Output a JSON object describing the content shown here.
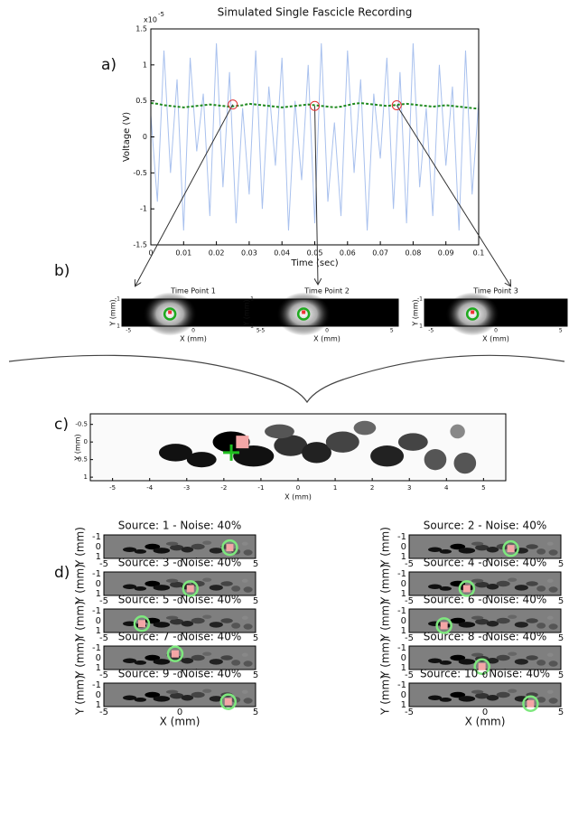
{
  "panel_labels": [
    "a)",
    "b)",
    "c)",
    "d)"
  ],
  "chart_data": [
    {
      "type": "line",
      "title": "Simulated Single Fascicle Recording",
      "xlabel": "Time (sec)",
      "ylabel": "Voltage (V)",
      "y_scale": "x10",
      "y_scale_exponent": "-5",
      "x": [
        0,
        0.002,
        0.004,
        0.006,
        0.008,
        0.01,
        0.012,
        0.014,
        0.016,
        0.018,
        0.02,
        0.022,
        0.024,
        0.026,
        0.028,
        0.03,
        0.032,
        0.034,
        0.036,
        0.038,
        0.04,
        0.042,
        0.044,
        0.046,
        0.048,
        0.05,
        0.052,
        0.054,
        0.056,
        0.058,
        0.06,
        0.062,
        0.064,
        0.066,
        0.068,
        0.07,
        0.072,
        0.074,
        0.076,
        0.078,
        0.08,
        0.082,
        0.084,
        0.086,
        0.088,
        0.09,
        0.092,
        0.094,
        0.096,
        0.098,
        0.1
      ],
      "xlim": [
        0,
        0.1
      ],
      "xticks": [
        0,
        0.01,
        0.02,
        0.03,
        0.04,
        0.05,
        0.06,
        0.07,
        0.08,
        0.09,
        0.1
      ],
      "ylim": [
        -1.5,
        1.5
      ],
      "yticks": [
        -1.5,
        -1,
        -0.5,
        0,
        0.5,
        1,
        1.5
      ],
      "series": [
        {
          "color": "#a9c1ee",
          "values": [
            0.3,
            -0.9,
            1.2,
            -0.5,
            0.8,
            -1.3,
            1.1,
            -0.2,
            0.6,
            -1.1,
            1.3,
            -0.7,
            0.9,
            -1.2,
            0.4,
            -0.8,
            1.2,
            -1.0,
            0.7,
            -0.4,
            1.1,
            -1.3,
            0.5,
            -0.6,
            1.0,
            -1.2,
            1.3,
            -0.9,
            0.2,
            -1.1,
            1.2,
            -0.5,
            0.8,
            -1.3,
            0.6,
            -0.3,
            1.1,
            -1.0,
            0.9,
            -1.2,
            1.3,
            -0.7,
            0.4,
            -1.1,
            1.0,
            -0.4,
            0.7,
            -1.3,
            1.2,
            -0.8,
            0.5
          ]
        },
        {
          "color": "#1f8a1f",
          "dashed": true,
          "values": [
            0.47,
            0.46,
            0.44,
            0.43,
            0.42,
            0.41,
            0.42,
            0.43,
            0.44,
            0.45,
            0.44,
            0.43,
            0.42,
            0.43,
            0.44,
            0.46,
            0.45,
            0.44,
            0.43,
            0.42,
            0.41,
            0.42,
            0.43,
            0.44,
            0.45,
            0.44,
            0.43,
            0.42,
            0.41,
            0.42,
            0.44,
            0.46,
            0.47,
            0.46,
            0.45,
            0.44,
            0.43,
            0.44,
            0.45,
            0.46,
            0.45,
            0.44,
            0.43,
            0.42,
            0.43,
            0.44,
            0.43,
            0.42,
            0.41,
            0.4,
            0.39
          ]
        }
      ],
      "markers": {
        "color": "#e03030",
        "x": [
          0.025,
          0.05,
          0.075
        ],
        "y": [
          0.45,
          0.43,
          0.44
        ]
      }
    },
    {
      "type": "heatmap-row",
      "xlabel": "X (mm)",
      "ylabel": "Y (mm)",
      "xlim": [
        -5.5,
        5.5
      ],
      "xticks": [
        -5,
        0,
        5
      ],
      "ylim": [
        -1,
        1
      ],
      "yticks": [
        -1,
        1
      ],
      "panels": [
        {
          "title": "Time Point 1",
          "source": {
            "x": -1.8,
            "y": 0.1
          }
        },
        {
          "title": "Time Point 2",
          "source": {
            "x": -1.8,
            "y": 0.1
          }
        },
        {
          "title": "Time Point 3",
          "source": {
            "x": -1.8,
            "y": 0.1
          }
        }
      ]
    },
    {
      "type": "fascicle-map",
      "xlabel": "X (mm)",
      "ylabel": "Y (mm)",
      "xlim": [
        -5.6,
        5.6
      ],
      "xticks": [
        -5,
        -4,
        -3,
        -2,
        -1,
        0,
        1,
        2,
        3,
        4,
        5
      ],
      "ylim": [
        -0.8,
        1.1
      ],
      "yticks": [
        -0.5,
        0,
        0.5,
        1
      ],
      "estimate": {
        "x": -1.8,
        "y": 0.3
      },
      "source": {
        "x": -1.5,
        "y": 0
      },
      "estimate_color": "#1fbf1f"
    },
    {
      "type": "localization-grid",
      "xlabel": "X (mm)",
      "ylabel": "Y (mm)",
      "xlim": [
        -5,
        5
      ],
      "xticks": [
        -5,
        0,
        5
      ],
      "ylim": [
        -1.2,
        1.2
      ],
      "yticks": [
        -1,
        0,
        1
      ],
      "circle_color": "#7ee87e",
      "plots": [
        {
          "title": "Source: 1 - Noise: 40%",
          "estimate": {
            "x": 3.3,
            "y": 0.1
          }
        },
        {
          "title": "Source: 2 - Noise: 40%",
          "estimate": {
            "x": 1.7,
            "y": 0.2
          }
        },
        {
          "title": "Source: 3 - Noise: 40%",
          "estimate": {
            "x": 0.7,
            "y": 0.5
          }
        },
        {
          "title": "Source: 4 - Noise: 40%",
          "estimate": {
            "x": -1.2,
            "y": 0.5
          }
        },
        {
          "title": "Source: 5 - Noise: 40%",
          "estimate": {
            "x": -2.5,
            "y": 0.3
          }
        },
        {
          "title": "Source: 6 - Noise: 40%",
          "estimate": {
            "x": -2.7,
            "y": 0.5
          }
        },
        {
          "title": "Source: 7 - Noise: 40%",
          "estimate": {
            "x": -0.3,
            "y": -0.4
          }
        },
        {
          "title": "Source: 8 - Noise: 40%",
          "estimate": {
            "x": -0.2,
            "y": 0.9
          }
        },
        {
          "title": "Source: 9 - Noise: 40%",
          "estimate": {
            "x": 3.2,
            "y": 0.7
          }
        },
        {
          "title": "Source: 10 - Noise: 40%",
          "estimate": {
            "x": 3.0,
            "y": 0.9
          }
        }
      ]
    }
  ]
}
